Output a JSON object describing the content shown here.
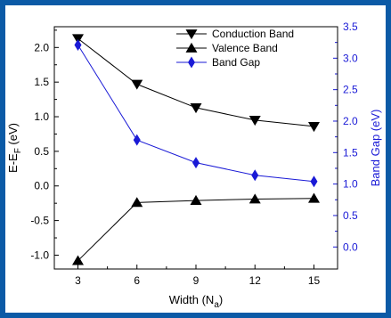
{
  "chart_data": {
    "type": "line",
    "xlabel": "Width (N",
    "xlabel_sub": "a",
    "xlabel_close": ")",
    "ylabel_left_main": "E-E",
    "ylabel_left_sub": "F",
    "ylabel_left_units": " (eV)",
    "ylabel_right": "Band Gap (eV)",
    "x": [
      3,
      6,
      9,
      12,
      15
    ],
    "xticks": [
      "3",
      "6",
      "9",
      "12",
      "15"
    ],
    "xlim": [
      1.8,
      16.2
    ],
    "ylim_left": [
      -1.2,
      2.3
    ],
    "yticks_left": [
      "-1.0",
      "-0.5",
      "0.0",
      "0.5",
      "1.0",
      "1.5",
      "2.0"
    ],
    "ylim_right": [
      -0.35,
      3.5
    ],
    "yticks_right": [
      "0.0",
      "0.5",
      "1.0",
      "1.5",
      "2.0",
      "2.5",
      "3.0",
      "3.5"
    ],
    "colors": {
      "left_axis": "#000000",
      "right_axis": "#1a1ad6",
      "frame": "#0b5aa6"
    },
    "legend_position": "top-right",
    "series": [
      {
        "name": "Conduction Band",
        "axis": "left",
        "color": "#000000",
        "marker": "triangle-down",
        "values": [
          2.13,
          1.47,
          1.13,
          0.95,
          0.86
        ]
      },
      {
        "name": "Valence Band",
        "axis": "left",
        "color": "#000000",
        "marker": "triangle-up",
        "values": [
          -1.08,
          -0.24,
          -0.21,
          -0.19,
          -0.18
        ]
      },
      {
        "name": "Band Gap",
        "axis": "right",
        "color": "#1a1ad6",
        "marker": "diamond",
        "values": [
          3.21,
          1.7,
          1.34,
          1.14,
          1.04
        ]
      }
    ]
  }
}
